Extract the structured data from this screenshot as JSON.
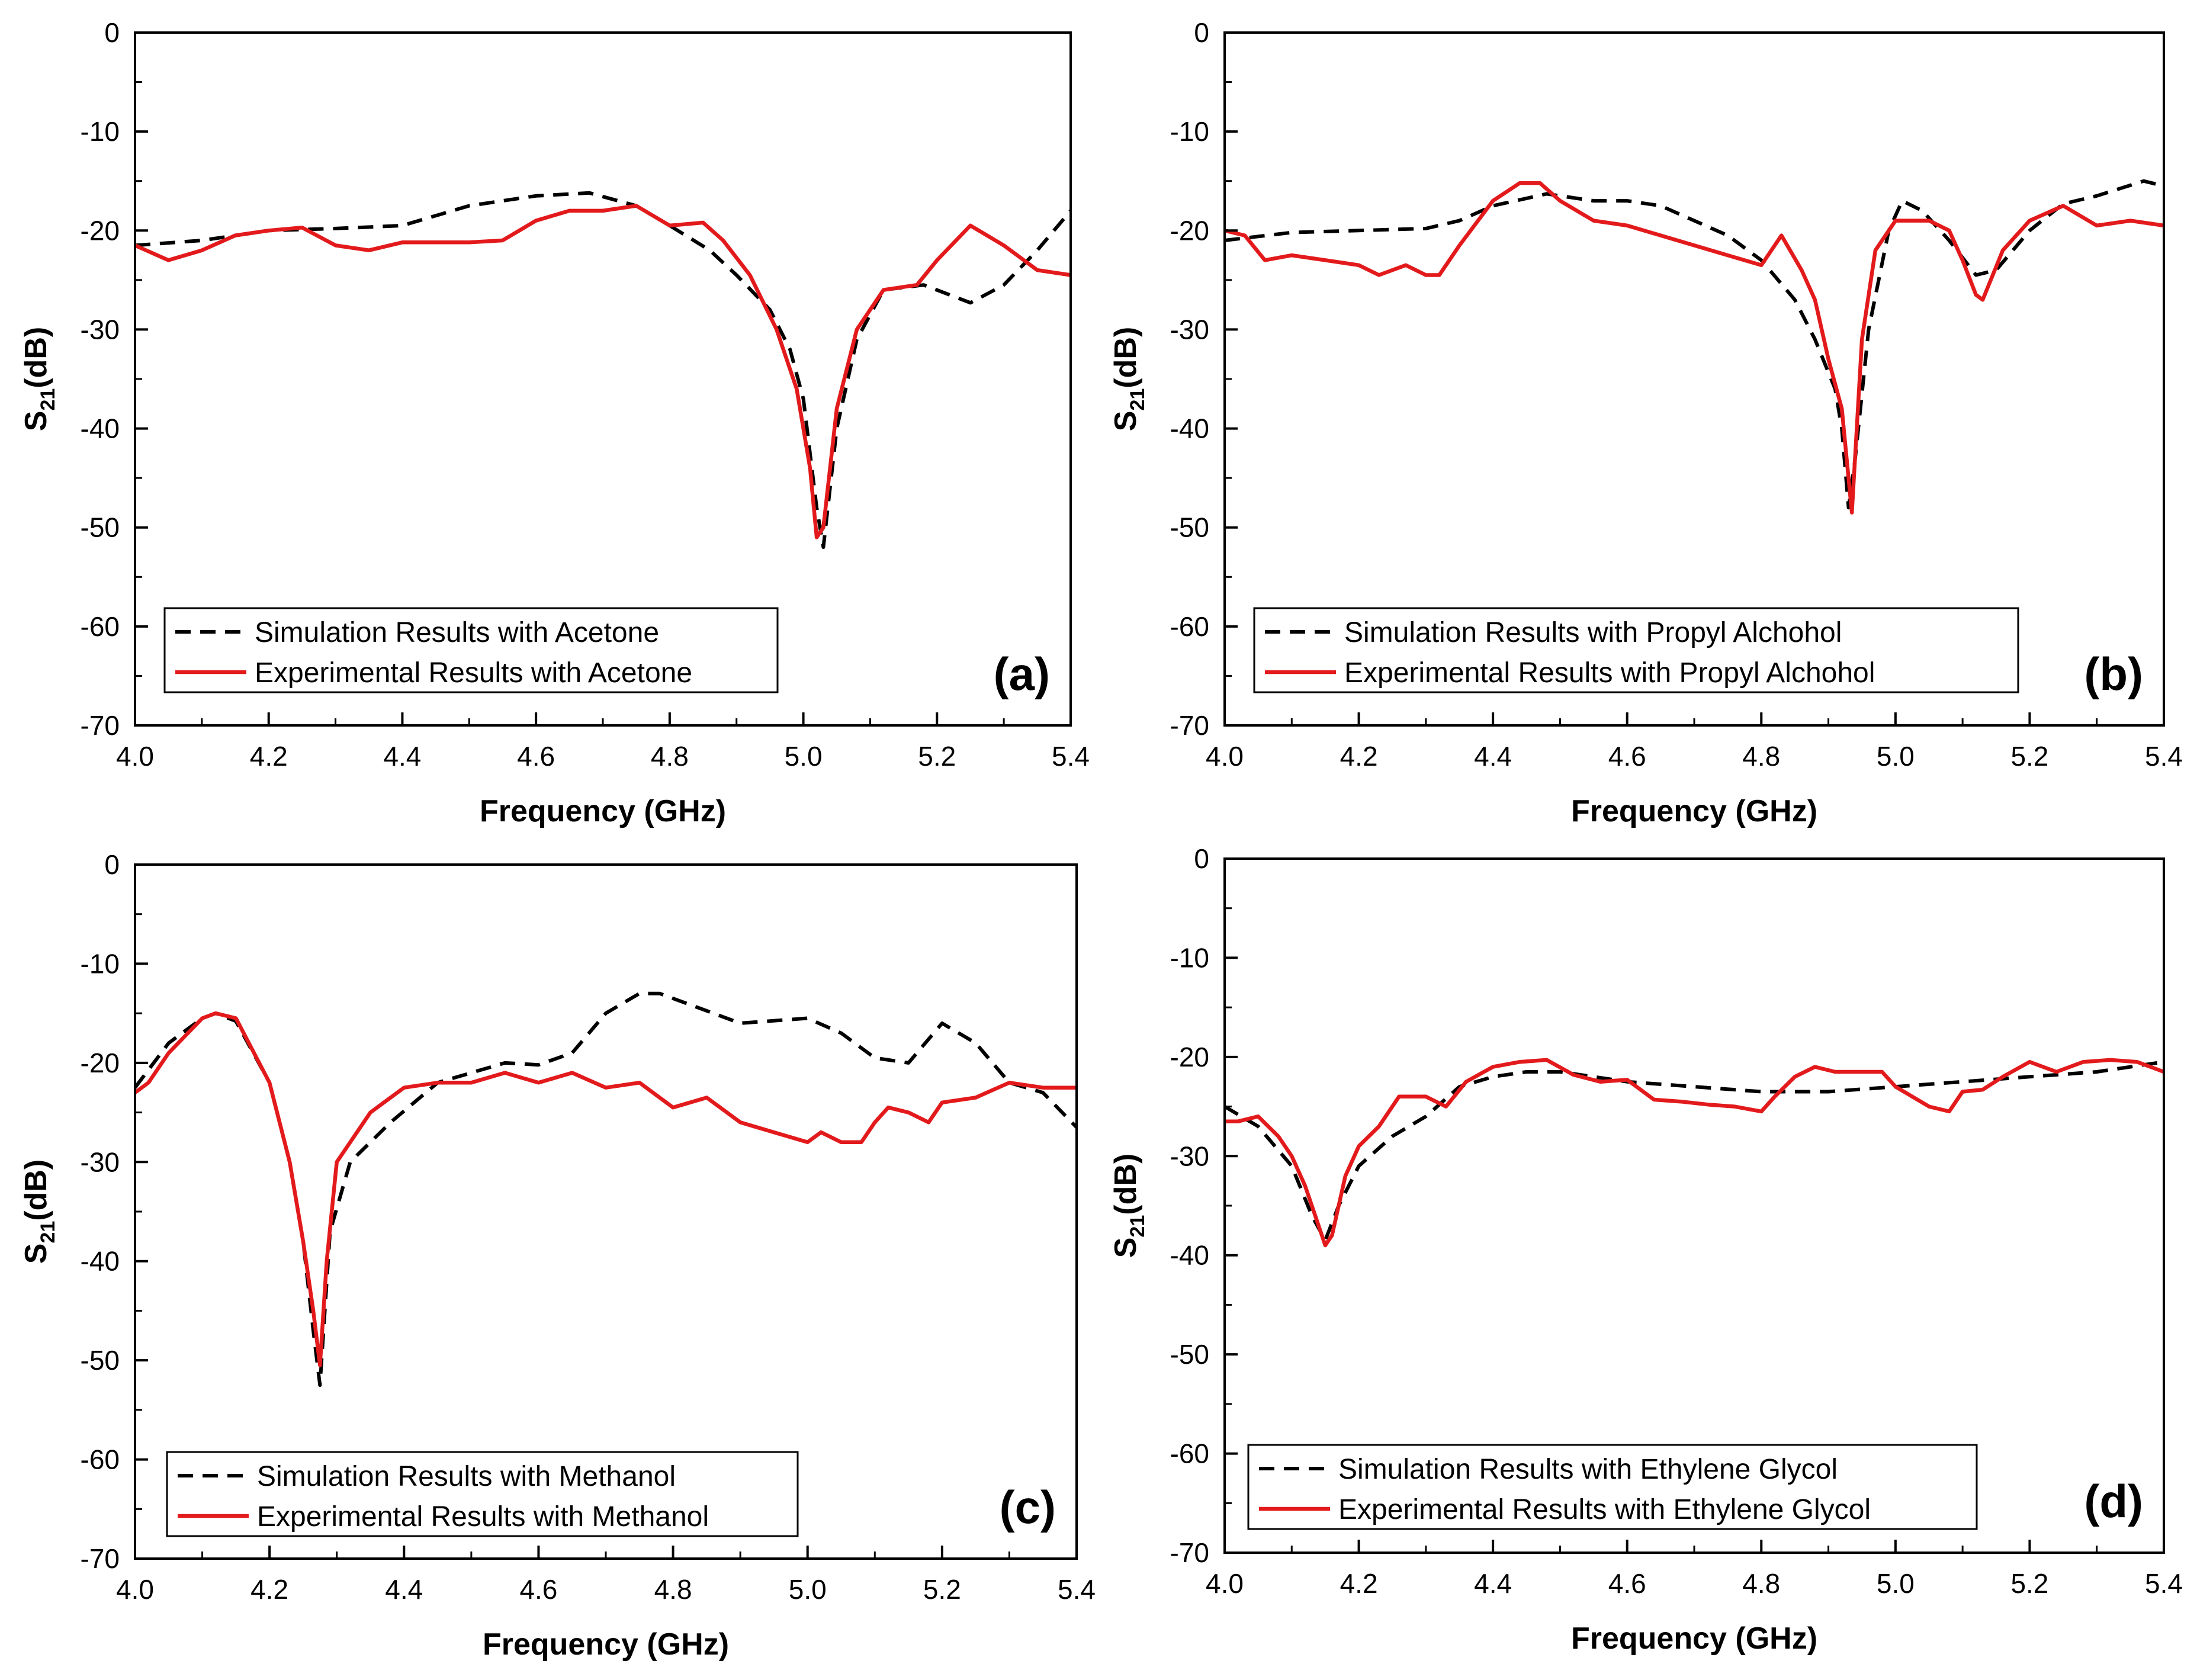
{
  "colors": {
    "simulation": "#000000",
    "experimental": "#e31a1c",
    "frame": "#000000",
    "background": "#ffffff"
  },
  "chart_data": [
    {
      "type": "line",
      "panel_label": "(a)",
      "xlabel": "Frequency (GHz)",
      "ylabel": {
        "base": "S",
        "sub": "21",
        "unit": "(dB)"
      },
      "xlim": [
        4.0,
        5.4
      ],
      "ylim": [
        -70,
        0
      ],
      "x_ticks": [
        "4.0",
        "4.2",
        "4.4",
        "4.6",
        "4.8",
        "5.0",
        "5.2",
        "5.4"
      ],
      "y_ticks": [
        "0",
        "-10",
        "-20",
        "-30",
        "-40",
        "-50",
        "-60",
        "-70"
      ],
      "legend_position": "bottom-left",
      "series": [
        {
          "name": "Simulation Results with Acetone",
          "style": "dashed",
          "x": [
            4.0,
            4.1,
            4.2,
            4.3,
            4.4,
            4.5,
            4.6,
            4.68,
            4.75,
            4.8,
            4.86,
            4.9,
            4.95,
            4.98,
            5.0,
            5.02,
            5.03,
            5.05,
            5.08,
            5.12,
            5.18,
            5.25,
            5.3,
            5.35,
            5.4
          ],
          "y": [
            -21.5,
            -21,
            -20,
            -19.8,
            -19.5,
            -17.5,
            -16.5,
            -16.2,
            -17.5,
            -19.5,
            -22,
            -24.5,
            -28,
            -32,
            -37,
            -48,
            -52,
            -40,
            -31,
            -26,
            -25.5,
            -27.3,
            -25.5,
            -22,
            -18
          ]
        },
        {
          "name": "Experimental Results with Acetone",
          "style": "solid",
          "x": [
            4.0,
            4.05,
            4.1,
            4.15,
            4.2,
            4.25,
            4.3,
            4.35,
            4.4,
            4.45,
            4.5,
            4.55,
            4.6,
            4.65,
            4.7,
            4.75,
            4.8,
            4.85,
            4.88,
            4.92,
            4.96,
            4.99,
            5.01,
            5.02,
            5.03,
            5.05,
            5.08,
            5.12,
            5.17,
            5.2,
            5.25,
            5.3,
            5.35,
            5.4
          ],
          "y": [
            -21.5,
            -23,
            -22,
            -20.5,
            -20,
            -19.7,
            -21.5,
            -22,
            -21.2,
            -21.2,
            -21.2,
            -21,
            -19,
            -18,
            -18,
            -17.5,
            -19.5,
            -19.2,
            -21,
            -24.5,
            -30,
            -36,
            -44,
            -51,
            -50,
            -38,
            -30,
            -26,
            -25.5,
            -23,
            -19.5,
            -21.5,
            -24,
            -24.5
          ]
        }
      ]
    },
    {
      "type": "line",
      "panel_label": "(b)",
      "xlabel": "Frequency (GHz)",
      "ylabel": {
        "base": "S",
        "sub": "21",
        "unit": "(dB)"
      },
      "xlim": [
        4.0,
        5.4
      ],
      "ylim": [
        -70,
        0
      ],
      "x_ticks": [
        "4.0",
        "4.2",
        "4.4",
        "4.6",
        "4.8",
        "5.0",
        "5.2",
        "5.4"
      ],
      "y_ticks": [
        "0",
        "-10",
        "-20",
        "-30",
        "-40",
        "-50",
        "-60",
        "-70"
      ],
      "legend_position": "bottom-left",
      "series": [
        {
          "name": "Simulation Results with Propyl Alchohol",
          "style": "dashed",
          "x": [
            4.0,
            4.1,
            4.2,
            4.3,
            4.35,
            4.4,
            4.48,
            4.55,
            4.6,
            4.65,
            4.7,
            4.75,
            4.8,
            4.85,
            4.88,
            4.91,
            4.92,
            4.93,
            4.94,
            4.96,
            4.99,
            5.01,
            5.04,
            5.08,
            5.12,
            5.15,
            5.2,
            5.25,
            5.3,
            5.37,
            5.4
          ],
          "y": [
            -21,
            -20.2,
            -20,
            -19.8,
            -19,
            -17.5,
            -16.3,
            -17,
            -17,
            -17.5,
            -19,
            -20.5,
            -23,
            -27,
            -31,
            -36,
            -40,
            -48,
            -43,
            -30,
            -20,
            -17,
            -18,
            -21,
            -24.5,
            -24,
            -20,
            -17.3,
            -16.5,
            -15,
            -15.5
          ]
        },
        {
          "name": "Experimental Results with Propyl Alchohol",
          "style": "solid",
          "x": [
            4.0,
            4.03,
            4.06,
            4.1,
            4.15,
            4.2,
            4.23,
            4.27,
            4.3,
            4.32,
            4.35,
            4.4,
            4.44,
            4.47,
            4.5,
            4.55,
            4.6,
            4.65,
            4.7,
            4.75,
            4.8,
            4.83,
            4.86,
            4.88,
            4.9,
            4.92,
            4.935,
            4.95,
            4.97,
            5.0,
            5.05,
            5.08,
            5.1,
            5.12,
            5.13,
            5.16,
            5.2,
            5.25,
            5.3,
            5.35,
            5.4
          ],
          "y": [
            -20,
            -20.5,
            -23,
            -22.5,
            -23,
            -23.5,
            -24.5,
            -23.5,
            -24.5,
            -24.5,
            -21.5,
            -17,
            -15.2,
            -15.2,
            -17,
            -19,
            -19.5,
            -20.5,
            -21.5,
            -22.5,
            -23.5,
            -20.5,
            -24,
            -27,
            -33,
            -38,
            -48.5,
            -31,
            -22,
            -19,
            -19,
            -20,
            -23,
            -26.5,
            -27,
            -22,
            -19,
            -17.5,
            -19.5,
            -19,
            -19.5
          ]
        }
      ]
    },
    {
      "type": "line",
      "panel_label": "(c)",
      "xlabel": "Frequency (GHz)",
      "ylabel": {
        "base": "S",
        "sub": "21",
        "unit": "(dB)"
      },
      "xlim": [
        4.0,
        5.4
      ],
      "ylim": [
        -70,
        0
      ],
      "x_ticks": [
        "4.0",
        "4.2",
        "4.4",
        "4.6",
        "4.8",
        "5.0",
        "5.2",
        "5.4"
      ],
      "y_ticks": [
        "0",
        "-10",
        "-20",
        "-30",
        "-40",
        "-50",
        "-60",
        "-70"
      ],
      "legend_position": "bottom-left",
      "series": [
        {
          "name": "Simulation Results with Methanol",
          "style": "dashed",
          "x": [
            4.0,
            4.05,
            4.1,
            4.12,
            4.15,
            4.2,
            4.23,
            4.25,
            4.265,
            4.275,
            4.29,
            4.32,
            4.38,
            4.45,
            4.5,
            4.55,
            4.6,
            4.65,
            4.7,
            4.75,
            4.78,
            4.82,
            4.9,
            5.0,
            5.05,
            5.1,
            5.15,
            5.2,
            5.25,
            5.3,
            5.35,
            5.4
          ],
          "y": [
            -22.5,
            -18,
            -15.5,
            -15,
            -15.8,
            -22,
            -30,
            -38,
            -47,
            -52.5,
            -37,
            -30,
            -26,
            -22,
            -21,
            -20,
            -20.2,
            -19,
            -15,
            -13,
            -13,
            -14,
            -16,
            -15.5,
            -17,
            -19.5,
            -20,
            -16,
            -18,
            -22,
            -23,
            -26.5
          ]
        },
        {
          "name": "Experimental Results with Methanol",
          "style": "solid",
          "x": [
            4.0,
            4.02,
            4.05,
            4.1,
            4.12,
            4.15,
            4.2,
            4.23,
            4.25,
            4.265,
            4.275,
            4.285,
            4.3,
            4.35,
            4.4,
            4.45,
            4.5,
            4.55,
            4.6,
            4.65,
            4.7,
            4.75,
            4.8,
            4.85,
            4.9,
            4.95,
            5.0,
            5.02,
            5.05,
            5.08,
            5.1,
            5.12,
            5.15,
            5.18,
            5.2,
            5.25,
            5.3,
            5.35,
            5.4
          ],
          "y": [
            -23,
            -22,
            -19,
            -15.5,
            -15,
            -15.5,
            -22,
            -30,
            -38,
            -45,
            -50.5,
            -40,
            -30,
            -25,
            -22.5,
            -22,
            -22,
            -21,
            -22,
            -21,
            -22.5,
            -22,
            -24.5,
            -23.5,
            -26,
            -27,
            -28,
            -27,
            -28,
            -28,
            -26,
            -24.5,
            -25,
            -26,
            -24,
            -23.5,
            -22,
            -22.5,
            -22.5
          ]
        }
      ]
    },
    {
      "type": "line",
      "panel_label": "(d)",
      "xlabel": "Frequency (GHz)",
      "ylabel": {
        "base": "S",
        "sub": "21",
        "unit": "(dB)"
      },
      "xlim": [
        4.0,
        5.4
      ],
      "ylim": [
        -70,
        0
      ],
      "x_ticks": [
        "4.0",
        "4.2",
        "4.4",
        "4.6",
        "4.8",
        "5.0",
        "5.2",
        "5.4"
      ],
      "y_ticks": [
        "0",
        "-10",
        "-20",
        "-30",
        "-40",
        "-50",
        "-60",
        "-70"
      ],
      "legend_position": "bottom-left",
      "series": [
        {
          "name": "Simulation Results with Ethylene Glycol",
          "style": "dashed",
          "x": [
            4.0,
            4.05,
            4.1,
            4.13,
            4.15,
            4.17,
            4.2,
            4.25,
            4.3,
            4.35,
            4.4,
            4.45,
            4.5,
            4.55,
            4.6,
            4.7,
            4.8,
            4.9,
            5.0,
            5.1,
            5.2,
            5.3,
            5.4
          ],
          "y": [
            -25,
            -27,
            -31,
            -36,
            -38.5,
            -35,
            -31,
            -28,
            -26,
            -23,
            -22,
            -21.5,
            -21.5,
            -22,
            -22.5,
            -23,
            -23.5,
            -23.5,
            -23,
            -22.5,
            -22,
            -21.5,
            -20.5
          ]
        },
        {
          "name": "Experimental Results with Ethylene Glycol",
          "style": "solid",
          "x": [
            4.0,
            4.02,
            4.05,
            4.08,
            4.1,
            4.12,
            4.14,
            4.15,
            4.16,
            4.18,
            4.2,
            4.23,
            4.26,
            4.3,
            4.33,
            4.36,
            4.4,
            4.44,
            4.48,
            4.52,
            4.56,
            4.6,
            4.64,
            4.68,
            4.72,
            4.76,
            4.8,
            4.82,
            4.85,
            4.88,
            4.91,
            4.95,
            4.98,
            5.0,
            5.05,
            5.08,
            5.1,
            5.13,
            5.16,
            5.2,
            5.24,
            5.28,
            5.32,
            5.36,
            5.4
          ],
          "y": [
            -26.5,
            -26.5,
            -26,
            -28,
            -30,
            -33,
            -37,
            -39,
            -38,
            -32,
            -29,
            -27,
            -24,
            -24,
            -25,
            -22.5,
            -21,
            -20.5,
            -20.3,
            -21.8,
            -22.5,
            -22.3,
            -24.3,
            -24.5,
            -24.8,
            -25,
            -25.5,
            -24,
            -22,
            -21,
            -21.5,
            -21.5,
            -21.5,
            -23,
            -25,
            -25.5,
            -23.5,
            -23.3,
            -22,
            -20.5,
            -21.5,
            -20.5,
            -20.3,
            -20.5,
            -21.5
          ]
        }
      ]
    }
  ]
}
